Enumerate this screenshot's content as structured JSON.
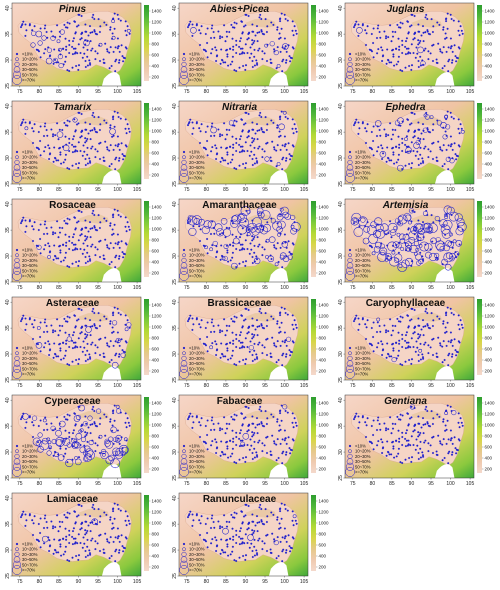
{
  "figure": {
    "panels": [
      {
        "title": "Pinus",
        "italic": true,
        "intensity": 0.45,
        "bias": "west"
      },
      {
        "title": "Abies+Picea",
        "italic": true,
        "intensity": 0.2,
        "bias": "southeast"
      },
      {
        "title": "Juglans",
        "italic": true,
        "intensity": 0.05,
        "bias": "none"
      },
      {
        "title": "Tamarix",
        "italic": true,
        "intensity": 0.08,
        "bias": "north"
      },
      {
        "title": "Nitraria",
        "italic": true,
        "intensity": 0.05,
        "bias": "north"
      },
      {
        "title": "Ephedra",
        "italic": true,
        "intensity": 0.3,
        "bias": "northeast"
      },
      {
        "title": "Rosaceae",
        "italic": false,
        "intensity": 0.06,
        "bias": "none"
      },
      {
        "title": "Amaranthaceae",
        "italic": false,
        "intensity": 0.75,
        "bias": "north"
      },
      {
        "title": "Artemisia",
        "italic": true,
        "intensity": 0.75,
        "bias": "all"
      },
      {
        "title": "Asteraceae",
        "italic": false,
        "intensity": 0.15,
        "bias": "east"
      },
      {
        "title": "Brassicaceae",
        "italic": false,
        "intensity": 0.08,
        "bias": "none"
      },
      {
        "title": "Caryophyllaceae",
        "italic": false,
        "intensity": 0.04,
        "bias": "none"
      },
      {
        "title": "Cyperaceae",
        "italic": false,
        "intensity": 0.8,
        "bias": "south"
      },
      {
        "title": "Fabaceae",
        "italic": false,
        "intensity": 0.06,
        "bias": "none"
      },
      {
        "title": "Gentiana",
        "italic": true,
        "intensity": 0.04,
        "bias": "none"
      },
      {
        "title": "Lamiaceae",
        "italic": false,
        "intensity": 0.04,
        "bias": "none"
      },
      {
        "title": "Ranunculaceae",
        "italic": false,
        "intensity": 0.08,
        "bias": "none"
      }
    ],
    "legend": [
      "<10%",
      "10~20%",
      "20~30%",
      "30~50%",
      "50~70%",
      ">=70%"
    ],
    "xticks": [
      "75",
      "80",
      "85",
      "90",
      "95",
      "100",
      "105"
    ],
    "yticks": [
      "25",
      "30",
      "35",
      "40"
    ],
    "colorbar": {
      "ticks": [
        "1400",
        "1200",
        "1000",
        "800",
        "600",
        "400",
        "200"
      ],
      "colors": [
        "#2e9e2e",
        "#4cb53a",
        "#7fcc3a",
        "#b5d936",
        "#d8d64a",
        "#e6c98a",
        "#efcab0",
        "#f4d9cc"
      ]
    },
    "colors": {
      "circle": "#1f1fcc",
      "background": "#ffffff"
    }
  }
}
